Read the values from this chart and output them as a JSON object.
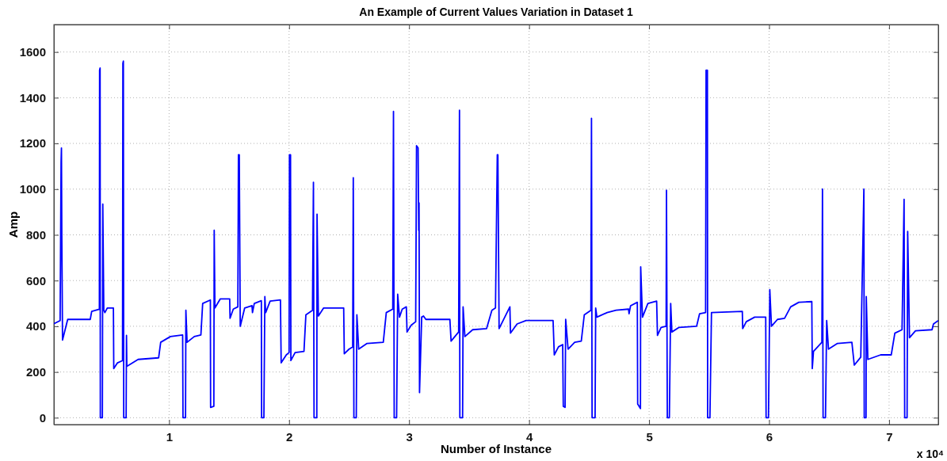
{
  "chart_data": {
    "type": "line",
    "title": "An Example of Current Values Variation in Dataset 1",
    "xlabel": "Number of Instance",
    "ylabel": "Amp",
    "annotations": [
      "x 10⁴"
    ],
    "xlim": [
      0.04,
      7.41
    ],
    "ylim": [
      -30,
      1720
    ],
    "xticks": [
      1,
      2,
      3,
      4,
      5,
      6,
      7
    ],
    "yticks": [
      0,
      200,
      400,
      600,
      800,
      1000,
      1200,
      1400,
      1600
    ],
    "grid": true,
    "series": [
      {
        "color": "#0000ff",
        "x": [
          0.04,
          0.092,
          0.1,
          0.103,
          0.106,
          0.112,
          0.155,
          0.343,
          0.355,
          0.419,
          0.421,
          0.425,
          0.427,
          0.444,
          0.4475,
          0.456,
          0.465,
          0.485,
          0.536,
          0.539,
          0.57,
          0.612,
          0.615,
          0.619,
          0.622,
          0.642,
          0.645,
          0.648,
          0.742,
          0.913,
          0.93,
          1.011,
          1.113,
          1.116,
          1.137,
          1.14,
          1.15,
          1.21,
          1.265,
          1.28,
          1.344,
          1.346,
          1.373,
          1.376,
          1.382,
          1.427,
          1.505,
          1.508,
          1.535,
          1.573,
          1.578,
          1.585,
          1.593,
          1.63,
          1.691,
          1.695,
          1.71,
          1.769,
          1.771,
          1.79,
          1.798,
          1.805,
          1.842,
          1.928,
          1.934,
          1.977,
          2.0,
          2.003,
          2.012,
          2.015,
          2.05,
          2.124,
          2.14,
          2.195,
          2.203,
          2.208,
          2.231,
          2.233,
          2.244,
          2.288,
          2.455,
          2.46,
          2.5,
          2.53,
          2.535,
          2.54,
          2.56,
          2.565,
          2.58,
          2.65,
          2.785,
          2.81,
          2.864,
          2.87,
          2.876,
          2.896,
          2.905,
          2.92,
          2.943,
          2.977,
          2.983,
          3.018,
          3.055,
          3.062,
          3.075,
          3.08,
          3.083,
          3.087,
          3.105,
          3.12,
          3.14,
          3.34,
          3.35,
          3.413,
          3.42,
          3.423,
          3.446,
          3.45,
          3.465,
          3.53,
          3.646,
          3.69,
          3.72,
          3.735,
          3.74,
          3.75,
          3.84,
          3.845,
          3.9,
          3.975,
          4.2,
          4.21,
          4.245,
          4.28,
          4.285,
          4.3,
          4.305,
          4.325,
          4.38,
          4.435,
          4.46,
          4.515,
          4.52,
          4.525,
          4.55,
          4.555,
          4.565,
          4.65,
          4.725,
          4.829,
          4.833,
          4.846,
          4.902,
          4.905,
          4.928,
          4.93,
          4.945,
          4.99,
          5.063,
          5.07,
          5.1,
          5.142,
          5.145,
          5.152,
          5.169,
          5.18,
          5.19,
          5.25,
          5.396,
          5.421,
          5.471,
          5.475,
          5.486,
          5.488,
          5.507,
          5.52,
          5.777,
          5.78,
          5.81,
          5.88,
          5.972,
          5.975,
          5.995,
          6.006,
          6.02,
          6.07,
          6.129,
          6.18,
          6.248,
          6.356,
          6.36,
          6.37,
          6.44,
          6.445,
          6.45,
          6.47,
          6.48,
          6.495,
          6.57,
          6.69,
          6.71,
          6.764,
          6.79,
          6.793,
          6.808,
          6.81,
          6.823,
          6.93,
          7.018,
          7.048,
          7.108,
          7.125,
          7.13,
          7.15,
          7.155,
          7.17,
          7.22,
          7.358,
          7.37,
          7.41
        ],
        "values": [
          411,
          425,
          1120,
          1180,
          800,
          340,
          430,
          430,
          465,
          475,
          1520,
          1530,
          0,
          0,
          935,
          470,
          460,
          480,
          480,
          215,
          240,
          250,
          1550,
          1560,
          0,
          0,
          360,
          225,
          255,
          262,
          330,
          355,
          362,
          0,
          0,
          470,
          330,
          355,
          362,
          500,
          515,
          45,
          50,
          820,
          480,
          520,
          520,
          435,
          475,
          485,
          1150,
          1150,
          400,
          480,
          490,
          460,
          500,
          512,
          0,
          0,
          530,
          460,
          510,
          515,
          240,
          275,
          285,
          1150,
          1150,
          250,
          285,
          290,
          450,
          470,
          1030,
          0,
          0,
          890,
          445,
          480,
          480,
          280,
          300,
          310,
          1050,
          0,
          0,
          450,
          300,
          325,
          330,
          460,
          475,
          1340,
          0,
          0,
          540,
          440,
          475,
          485,
          375,
          405,
          420,
          1190,
          1180,
          820,
          940,
          110,
          440,
          445,
          430,
          430,
          335,
          375,
          1345,
          0,
          0,
          485,
          355,
          385,
          390,
          470,
          480,
          1150,
          1150,
          390,
          485,
          370,
          410,
          425,
          425,
          275,
          310,
          320,
          50,
          45,
          430,
          300,
          330,
          335,
          450,
          470,
          1310,
          0,
          0,
          480,
          440,
          460,
          470,
          475,
          455,
          490,
          505,
          60,
          40,
          660,
          440,
          500,
          510,
          360,
          395,
          400,
          995,
          0,
          0,
          500,
          375,
          395,
          400,
          455,
          460,
          1520,
          1520,
          0,
          0,
          460,
          465,
          390,
          420,
          440,
          440,
          0,
          0,
          560,
          400,
          430,
          435,
          485,
          505,
          508,
          215,
          290,
          330,
          1000,
          0,
          0,
          425,
          300,
          325,
          330,
          230,
          265,
          1000,
          0,
          0,
          530,
          255,
          275,
          275,
          370,
          385,
          955,
          0,
          0,
          815,
          350,
          380,
          385,
          410,
          425
        ]
      }
    ]
  }
}
